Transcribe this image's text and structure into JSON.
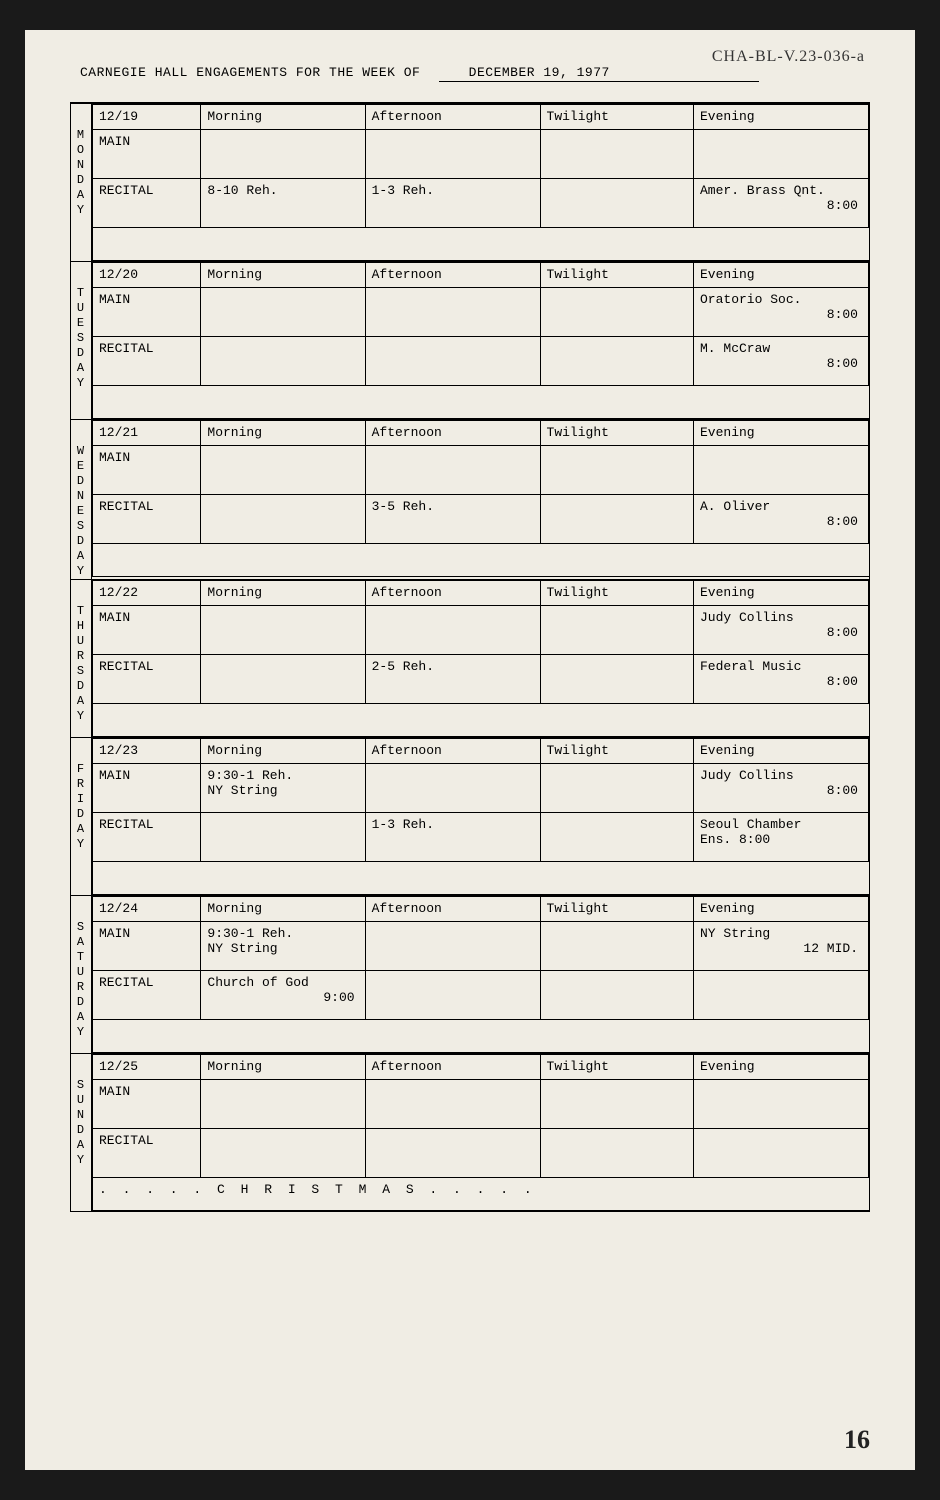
{
  "archive_ref": "CHA-BL-V.23-036-a",
  "header_title": "CARNEGIE HALL ENGAGEMENTS FOR THE WEEK OF",
  "header_date": "DECEMBER 19, 1977",
  "page_number": "16",
  "columns": {
    "morning": "Morning",
    "afternoon": "Afternoon",
    "twilight": "Twilight",
    "evening": "Evening"
  },
  "rooms": {
    "main": "MAIN",
    "recital": "RECITAL"
  },
  "days": [
    {
      "label": "MONDAY",
      "date": "12/19",
      "main": {
        "morning": "",
        "afternoon": "",
        "twilight": "",
        "evening": ""
      },
      "recital": {
        "morning": "8-10 Reh.",
        "afternoon": "1-3 Reh.",
        "twilight": "",
        "evening_main": "Amer. Brass Qnt.",
        "evening_time": "8:00"
      },
      "blank": ""
    },
    {
      "label": "TUESDAY",
      "date": "12/20",
      "main": {
        "morning": "",
        "afternoon": "",
        "twilight": "",
        "evening_main": "Oratorio Soc.",
        "evening_time": "8:00"
      },
      "recital": {
        "morning": "",
        "afternoon": "",
        "twilight": "",
        "evening_main": "M. McCraw",
        "evening_time": "8:00"
      },
      "blank": ""
    },
    {
      "label": "WEDNESDAY",
      "date": "12/21",
      "main": {
        "morning": "",
        "afternoon": "",
        "twilight": "",
        "evening": ""
      },
      "recital": {
        "morning": "",
        "afternoon": "3-5 Reh.",
        "twilight": "",
        "evening_main": "A. Oliver",
        "evening_time": "8:00"
      },
      "blank": ""
    },
    {
      "label": "THURSDAY",
      "date": "12/22",
      "main": {
        "morning": "",
        "afternoon": "",
        "twilight": "",
        "evening_main": "Judy Collins",
        "evening_time": "8:00"
      },
      "recital": {
        "morning": "",
        "afternoon": "2-5 Reh.",
        "twilight": "",
        "evening_main": "Federal Music",
        "evening_time": "8:00"
      },
      "blank": ""
    },
    {
      "label": "FRIDAY",
      "date": "12/23",
      "main": {
        "morning_main": "9:30-1 Reh.",
        "morning_sub": "NY String",
        "afternoon": "",
        "twilight": "",
        "evening_main": "Judy Collins",
        "evening_time": "8:00"
      },
      "recital": {
        "morning": "",
        "afternoon": "1-3 Reh.",
        "twilight": "",
        "evening_main": "Seoul Chamber",
        "evening_sub": "Ens.    8:00"
      },
      "blank": ""
    },
    {
      "label": "SATURDAY",
      "date": "12/24",
      "main": {
        "morning_main": "9:30-1 Reh.",
        "morning_sub": "NY String",
        "afternoon": "",
        "twilight": "",
        "evening_main": "NY String",
        "evening_time": "12 MID."
      },
      "recital": {
        "morning_main": "Church of God",
        "morning_time": "9:00",
        "afternoon": "",
        "twilight": "",
        "evening": ""
      },
      "blank": ""
    },
    {
      "label": "SUNDAY",
      "date": "12/25",
      "main": {
        "morning": "",
        "afternoon": "",
        "twilight": "",
        "evening": ""
      },
      "recital": {
        "morning": "",
        "afternoon": "",
        "twilight": "",
        "evening": ""
      },
      "footer": ". . . . . C H R I S T M A S . . . . ."
    }
  ]
}
